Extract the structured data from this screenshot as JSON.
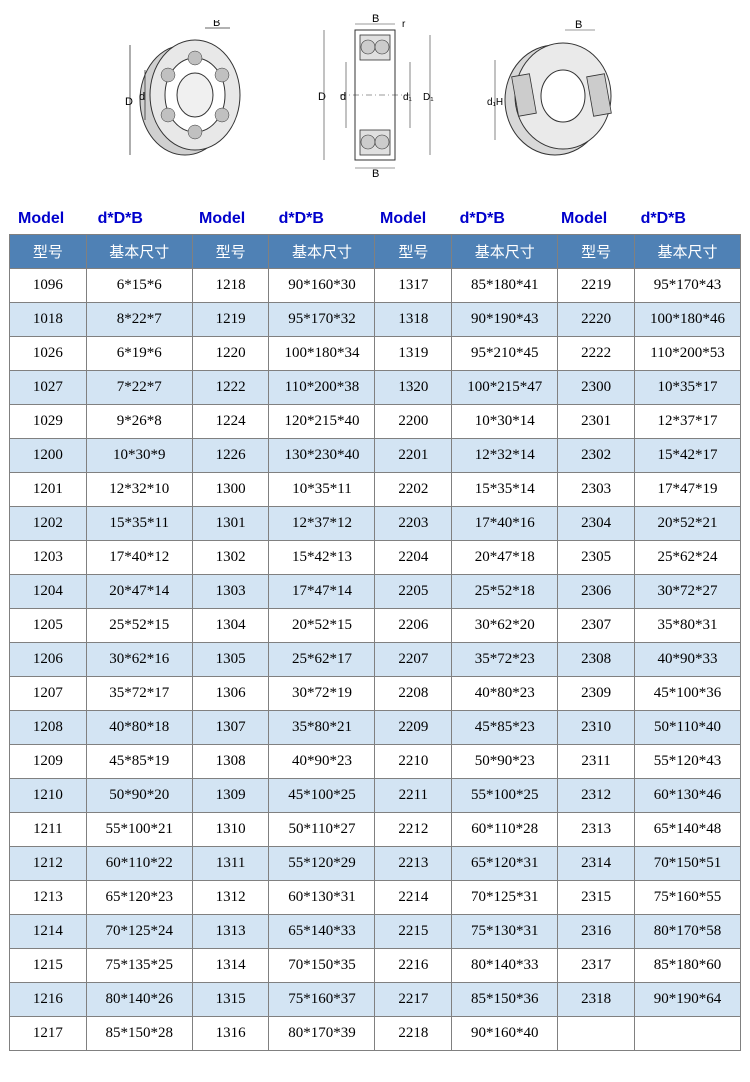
{
  "diagrams": {
    "count": 3
  },
  "labels": {
    "model": "Model",
    "ddb": "d*D*B"
  },
  "header": {
    "model": "型号",
    "dim": "基本尺寸"
  },
  "colors": {
    "header_bg": "#4f81b5",
    "header_text": "#ffffff",
    "row_odd": "#ffffff",
    "row_even": "#d3e4f3",
    "border": "#808080",
    "label": "#0000cc"
  },
  "rows": [
    [
      "1096",
      "6*15*6",
      "1218",
      "90*160*30",
      "1317",
      "85*180*41",
      "2219",
      "95*170*43"
    ],
    [
      "1018",
      "8*22*7",
      "1219",
      "95*170*32",
      "1318",
      "90*190*43",
      "2220",
      "100*180*46"
    ],
    [
      "1026",
      "6*19*6",
      "1220",
      "100*180*34",
      "1319",
      "95*210*45",
      "2222",
      "110*200*53"
    ],
    [
      "1027",
      "7*22*7",
      "1222",
      "110*200*38",
      "1320",
      "100*215*47",
      "2300",
      "10*35*17"
    ],
    [
      "1029",
      "9*26*8",
      "1224",
      "120*215*40",
      "2200",
      "10*30*14",
      "2301",
      "12*37*17"
    ],
    [
      "1200",
      "10*30*9",
      "1226",
      "130*230*40",
      "2201",
      "12*32*14",
      "2302",
      "15*42*17"
    ],
    [
      "1201",
      "12*32*10",
      "1300",
      "10*35*11",
      "2202",
      "15*35*14",
      "2303",
      "17*47*19"
    ],
    [
      "1202",
      "15*35*11",
      "1301",
      "12*37*12",
      "2203",
      "17*40*16",
      "2304",
      "20*52*21"
    ],
    [
      "1203",
      "17*40*12",
      "1302",
      "15*42*13",
      "2204",
      "20*47*18",
      "2305",
      "25*62*24"
    ],
    [
      "1204",
      "20*47*14",
      "1303",
      "17*47*14",
      "2205",
      "25*52*18",
      "2306",
      "30*72*27"
    ],
    [
      "1205",
      "25*52*15",
      "1304",
      "20*52*15",
      "2206",
      "30*62*20",
      "2307",
      "35*80*31"
    ],
    [
      "1206",
      "30*62*16",
      "1305",
      "25*62*17",
      "2207",
      "35*72*23",
      "2308",
      "40*90*33"
    ],
    [
      "1207",
      "35*72*17",
      "1306",
      "30*72*19",
      "2208",
      "40*80*23",
      "2309",
      "45*100*36"
    ],
    [
      "1208",
      "40*80*18",
      "1307",
      "35*80*21",
      "2209",
      "45*85*23",
      "2310",
      "50*110*40"
    ],
    [
      "1209",
      "45*85*19",
      "1308",
      "40*90*23",
      "2210",
      "50*90*23",
      "2311",
      "55*120*43"
    ],
    [
      "1210",
      "50*90*20",
      "1309",
      "45*100*25",
      "2211",
      "55*100*25",
      "2312",
      "60*130*46"
    ],
    [
      "1211",
      "55*100*21",
      "1310",
      "50*110*27",
      "2212",
      "60*110*28",
      "2313",
      "65*140*48"
    ],
    [
      "1212",
      "60*110*22",
      "1311",
      "55*120*29",
      "2213",
      "65*120*31",
      "2314",
      "70*150*51"
    ],
    [
      "1213",
      "65*120*23",
      "1312",
      "60*130*31",
      "2214",
      "70*125*31",
      "2315",
      "75*160*55"
    ],
    [
      "1214",
      "70*125*24",
      "1313",
      "65*140*33",
      "2215",
      "75*130*31",
      "2316",
      "80*170*58"
    ],
    [
      "1215",
      "75*135*25",
      "1314",
      "70*150*35",
      "2216",
      "80*140*33",
      "2317",
      "85*180*60"
    ],
    [
      "1216",
      "80*140*26",
      "1315",
      "75*160*37",
      "2217",
      "85*150*36",
      "2318",
      "90*190*64"
    ],
    [
      "1217",
      "85*150*28",
      "1316",
      "80*170*39",
      "2218",
      "90*160*40",
      "",
      ""
    ]
  ]
}
